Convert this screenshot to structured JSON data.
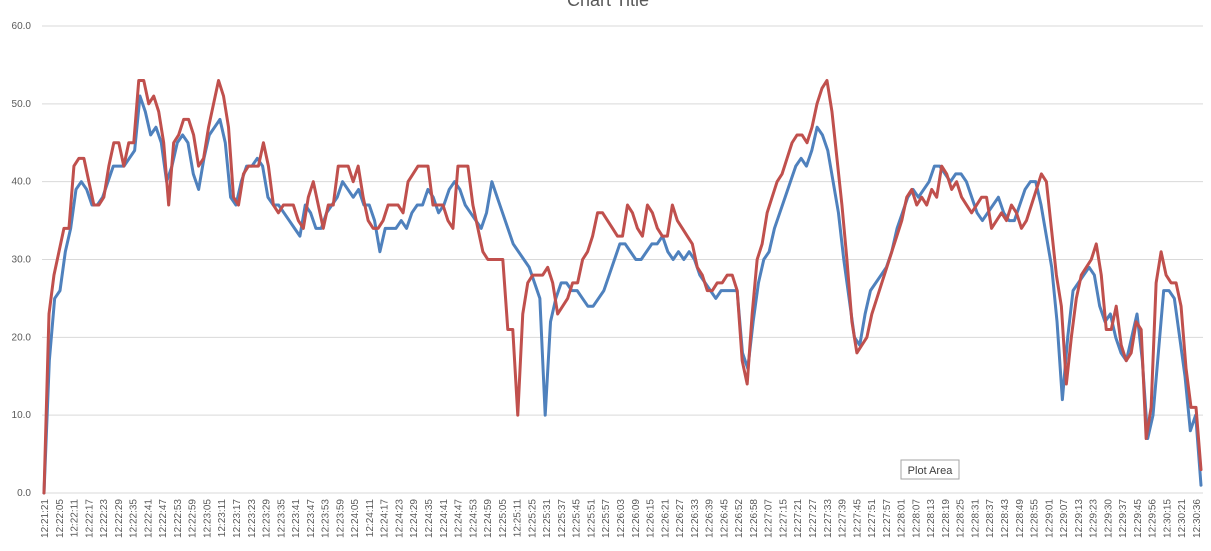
{
  "chart_data": {
    "type": "line",
    "title": "Chart Title",
    "xlabel": "",
    "ylabel": "",
    "ylim": [
      0,
      60
    ],
    "y_ticks": [
      "0.0",
      "10.0",
      "20.0",
      "30.0",
      "40.0",
      "50.0",
      "60.0"
    ],
    "grid": true,
    "x_tick_labels": [
      "12:21:21",
      "12:22:05",
      "12:22:11",
      "12:22:17",
      "12:22:23",
      "12:22:29",
      "12:22:35",
      "12:22:41",
      "12:22:47",
      "12:22:53",
      "12:22:59",
      "12:23:05",
      "12:23:11",
      "12:23:17",
      "12:23:23",
      "12:23:29",
      "12:23:35",
      "12:23:41",
      "12:23:47",
      "12:23:53",
      "12:23:59",
      "12:24:05",
      "12:24:11",
      "12:24:17",
      "12:24:23",
      "12:24:29",
      "12:24:35",
      "12:24:41",
      "12:24:47",
      "12:24:53",
      "12:24:59",
      "12:25:05",
      "12:25:11",
      "12:25:25",
      "12:25:31",
      "12:25:37",
      "12:25:45",
      "12:25:51",
      "12:25:57",
      "12:26:03",
      "12:26:09",
      "12:26:15",
      "12:26:21",
      "12:26:27",
      "12:26:33",
      "12:26:39",
      "12:26:45",
      "12:26:52",
      "12:26:58",
      "12:27:07",
      "12:27:15",
      "12:27:21",
      "12:27:27",
      "12:27:33",
      "12:27:39",
      "12:27:45",
      "12:27:51",
      "12:27:57",
      "12:28:01",
      "12:28:07",
      "12:28:13",
      "12:28:19",
      "12:28:25",
      "12:28:31",
      "12:28:37",
      "12:28:43",
      "12:28:49",
      "12:28:55",
      "12:29:01",
      "12:29:07",
      "12:29:13",
      "12:29:23",
      "12:29:30",
      "12:29:37",
      "12:29:45",
      "12:29:56",
      "12:30:15",
      "12:30:21",
      "12:30:36"
    ],
    "series": [
      {
        "name": "",
        "color": "#4f81bd",
        "values": [
          0,
          17,
          25,
          26,
          31,
          34,
          39,
          40,
          39,
          37,
          37,
          38,
          40,
          42,
          42,
          42,
          43,
          44,
          51,
          49,
          46,
          47,
          45,
          40,
          42,
          45,
          46,
          45,
          41,
          39,
          43,
          46,
          47,
          48,
          45,
          38,
          37,
          40,
          42,
          42,
          43,
          42,
          38,
          37,
          37,
          36,
          35,
          34,
          33,
          37,
          36,
          34,
          34,
          36,
          37,
          38,
          40,
          39,
          38,
          39,
          37,
          37,
          35,
          31,
          34,
          34,
          34,
          35,
          34,
          36,
          37,
          37,
          39,
          38,
          36,
          37,
          39,
          40,
          39,
          37,
          36,
          35,
          34,
          36,
          40,
          38,
          36,
          34,
          32,
          31,
          30,
          29,
          27,
          25,
          10,
          22,
          25,
          27,
          27,
          26,
          26,
          25,
          24,
          24,
          25,
          26,
          28,
          30,
          32,
          32,
          31,
          30,
          30,
          31,
          32,
          32,
          33,
          31,
          30,
          31,
          30,
          31,
          30,
          28,
          27,
          26,
          25,
          26,
          26,
          26,
          26,
          18,
          16,
          22,
          27,
          30,
          31,
          34,
          36,
          38,
          40,
          42,
          43,
          42,
          44,
          47,
          46,
          44,
          40,
          36,
          30,
          25,
          20,
          19,
          23,
          26,
          27,
          28,
          29,
          31,
          34,
          36,
          38,
          39,
          38,
          39,
          40,
          42,
          42,
          41,
          40,
          41,
          41,
          40,
          38,
          36,
          35,
          36,
          37,
          38,
          36,
          35,
          35,
          37,
          39,
          40,
          40,
          37,
          33,
          29,
          22,
          12,
          20,
          26,
          27,
          28,
          29,
          28,
          24,
          22,
          23,
          20,
          18,
          17,
          20,
          23,
          17,
          7,
          10,
          18,
          26,
          26,
          25,
          20,
          15,
          8,
          10,
          1
        ]
      },
      {
        "name": "",
        "color": "#c0504d",
        "values": [
          0,
          23,
          28,
          31,
          34,
          34,
          42,
          43,
          43,
          40,
          37,
          37,
          38,
          42,
          45,
          45,
          42,
          45,
          45,
          53,
          53,
          50,
          51,
          49,
          45,
          37,
          45,
          46,
          48,
          48,
          46,
          42,
          43,
          47,
          50,
          53,
          51,
          47,
          38,
          37,
          41,
          42,
          42,
          42,
          45,
          42,
          37,
          36,
          37,
          37,
          37,
          35,
          34,
          38,
          40,
          37,
          34,
          37,
          37,
          42,
          42,
          42,
          40,
          42,
          38,
          35,
          34,
          34,
          35,
          37,
          37,
          37,
          36,
          40,
          41,
          42,
          42,
          42,
          37,
          37,
          37,
          35,
          34,
          42,
          42,
          42,
          37,
          34,
          31,
          30,
          30,
          30,
          30,
          21,
          21,
          10,
          23,
          27,
          28,
          28,
          28,
          29,
          27,
          23,
          24,
          25,
          27,
          27,
          30,
          31,
          33,
          36,
          36,
          35,
          34,
          33,
          33,
          37,
          36,
          34,
          33,
          37,
          36,
          34,
          33,
          33,
          37,
          35,
          34,
          33,
          32,
          29,
          28,
          26,
          26,
          27,
          27,
          28,
          28,
          26,
          17,
          14,
          23,
          30,
          32,
          36,
          38,
          40,
          41,
          43,
          45,
          46,
          46,
          45,
          47,
          50,
          52,
          53,
          49,
          43,
          37,
          30,
          22,
          18,
          19,
          20,
          23,
          25,
          27,
          29,
          31,
          33,
          35,
          38,
          39,
          37,
          38,
          37,
          39,
          38,
          42,
          41,
          39,
          40,
          38,
          37,
          36,
          37,
          38,
          38,
          34,
          35,
          36,
          35,
          37,
          36,
          34,
          35,
          37,
          39,
          41,
          40,
          34,
          28,
          24,
          14,
          20,
          25,
          28,
          29,
          30,
          32,
          28,
          21,
          21,
          24,
          19,
          17,
          18,
          22,
          21,
          7,
          11,
          27,
          31,
          28,
          27,
          27,
          24,
          16,
          11,
          11,
          3
        ]
      }
    ],
    "annotation": "Plot Area"
  }
}
